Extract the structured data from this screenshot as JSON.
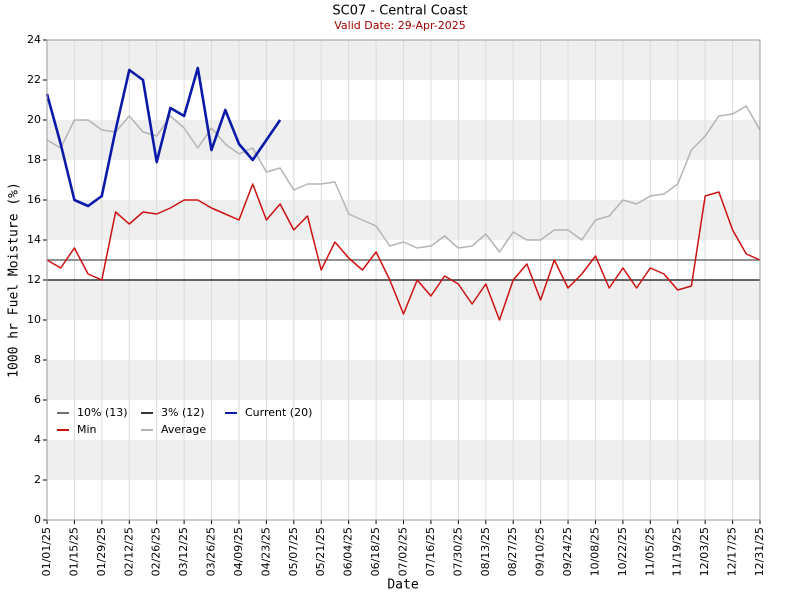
{
  "chart_data": {
    "type": "line",
    "title": "SC07 - Central Coast",
    "subtitle": "Valid Date: 29-Apr-2025",
    "x_label": "Date",
    "y_label": "1000 hr Fuel Moisture (%)",
    "x": [
      "01/01/25",
      "01/08/25",
      "01/15/25",
      "01/22/25",
      "01/29/25",
      "02/05/25",
      "02/12/25",
      "02/19/25",
      "02/26/25",
      "03/05/25",
      "03/12/25",
      "03/19/25",
      "03/26/25",
      "04/02/25",
      "04/09/25",
      "04/16/25",
      "04/23/25",
      "04/30/25",
      "05/07/25",
      "05/14/25",
      "05/21/25",
      "05/28/25",
      "06/04/25",
      "06/11/25",
      "06/18/25",
      "06/25/25",
      "07/02/25",
      "07/09/25",
      "07/16/25",
      "07/23/25",
      "07/30/25",
      "08/06/25",
      "08/13/25",
      "08/20/25",
      "08/27/25",
      "09/03/25",
      "09/10/25",
      "09/17/25",
      "09/24/25",
      "10/01/25",
      "10/08/25",
      "10/15/25",
      "10/22/25",
      "10/29/25",
      "11/05/25",
      "11/12/25",
      "11/19/25",
      "11/26/25",
      "12/03/25",
      "12/10/25",
      "12/17/25",
      "12/24/25",
      "12/31/25"
    ],
    "xlim": [
      "01/01/25",
      "12/31/25"
    ],
    "xticks": [
      "01/01/25",
      "01/15/25",
      "01/29/25",
      "02/12/25",
      "02/26/25",
      "03/12/25",
      "03/26/25",
      "04/09/25",
      "04/23/25",
      "05/07/25",
      "05/21/25",
      "06/04/25",
      "06/18/25",
      "07/02/25",
      "07/16/25",
      "07/30/25",
      "08/13/25",
      "08/27/25",
      "09/10/25",
      "09/24/25",
      "10/08/25",
      "10/22/25",
      "11/05/25",
      "11/19/25",
      "12/03/25",
      "12/17/25",
      "12/31/25"
    ],
    "ylim": [
      0,
      24
    ],
    "yticks": [
      0,
      2,
      4,
      6,
      8,
      10,
      12,
      14,
      16,
      18,
      20,
      22,
      24
    ],
    "grid": true,
    "reference_lines": [
      {
        "name": "10% (13)",
        "value": 13,
        "color": "#6e6e6e"
      },
      {
        "name": "3% (12)",
        "value": 12,
        "color": "#333333"
      }
    ],
    "series": [
      {
        "name": "Min",
        "color": "#cc1111",
        "values": [
          13.0,
          12.6,
          13.6,
          12.3,
          12.0,
          15.4,
          14.8,
          15.4,
          15.3,
          15.6,
          16.0,
          16.0,
          15.6,
          15.3,
          15.0,
          16.8,
          15.0,
          15.8,
          14.5,
          15.2,
          12.5,
          13.9,
          13.1,
          12.5,
          13.4,
          12.0,
          10.3,
          12.0,
          11.2,
          12.2,
          11.8,
          10.8,
          11.8,
          10.0,
          12.0,
          12.8,
          11.0,
          13.0,
          11.6,
          12.3,
          13.2,
          11.6,
          12.6,
          11.6,
          12.6,
          12.3,
          11.5,
          11.7,
          16.2,
          16.4,
          14.5,
          13.3,
          13.0
        ]
      },
      {
        "name": "Average",
        "color": "#b4b4b4",
        "values": [
          19.0,
          18.6,
          20.0,
          20.0,
          19.5,
          19.4,
          20.2,
          19.4,
          19.2,
          20.2,
          19.6,
          18.6,
          19.6,
          18.8,
          18.3,
          18.6,
          17.4,
          17.6,
          16.5,
          16.8,
          16.8,
          16.9,
          15.3,
          15.0,
          14.7,
          13.7,
          13.9,
          13.6,
          13.7,
          14.2,
          13.6,
          13.7,
          14.3,
          13.4,
          14.4,
          14.0,
          14.0,
          14.5,
          14.5,
          14.0,
          15.0,
          15.2,
          16.0,
          15.8,
          16.2,
          16.3,
          16.8,
          18.5,
          19.2,
          20.2,
          20.3,
          20.7,
          19.5
        ]
      },
      {
        "name": "Current (20)",
        "color": "#0a1aa8",
        "values": [
          21.3,
          18.8,
          16.0,
          15.7,
          16.2,
          19.5,
          22.5,
          22.0,
          17.9,
          20.6,
          20.2,
          22.6,
          18.5,
          20.5,
          18.8,
          18.0,
          19.0,
          20.0,
          null,
          null,
          null,
          null,
          null,
          null,
          null,
          null,
          null,
          null,
          null,
          null,
          null,
          null,
          null,
          null,
          null,
          null,
          null,
          null,
          null,
          null,
          null,
          null,
          null,
          null,
          null,
          null,
          null,
          null,
          null,
          null,
          null,
          null,
          null
        ]
      }
    ]
  }
}
